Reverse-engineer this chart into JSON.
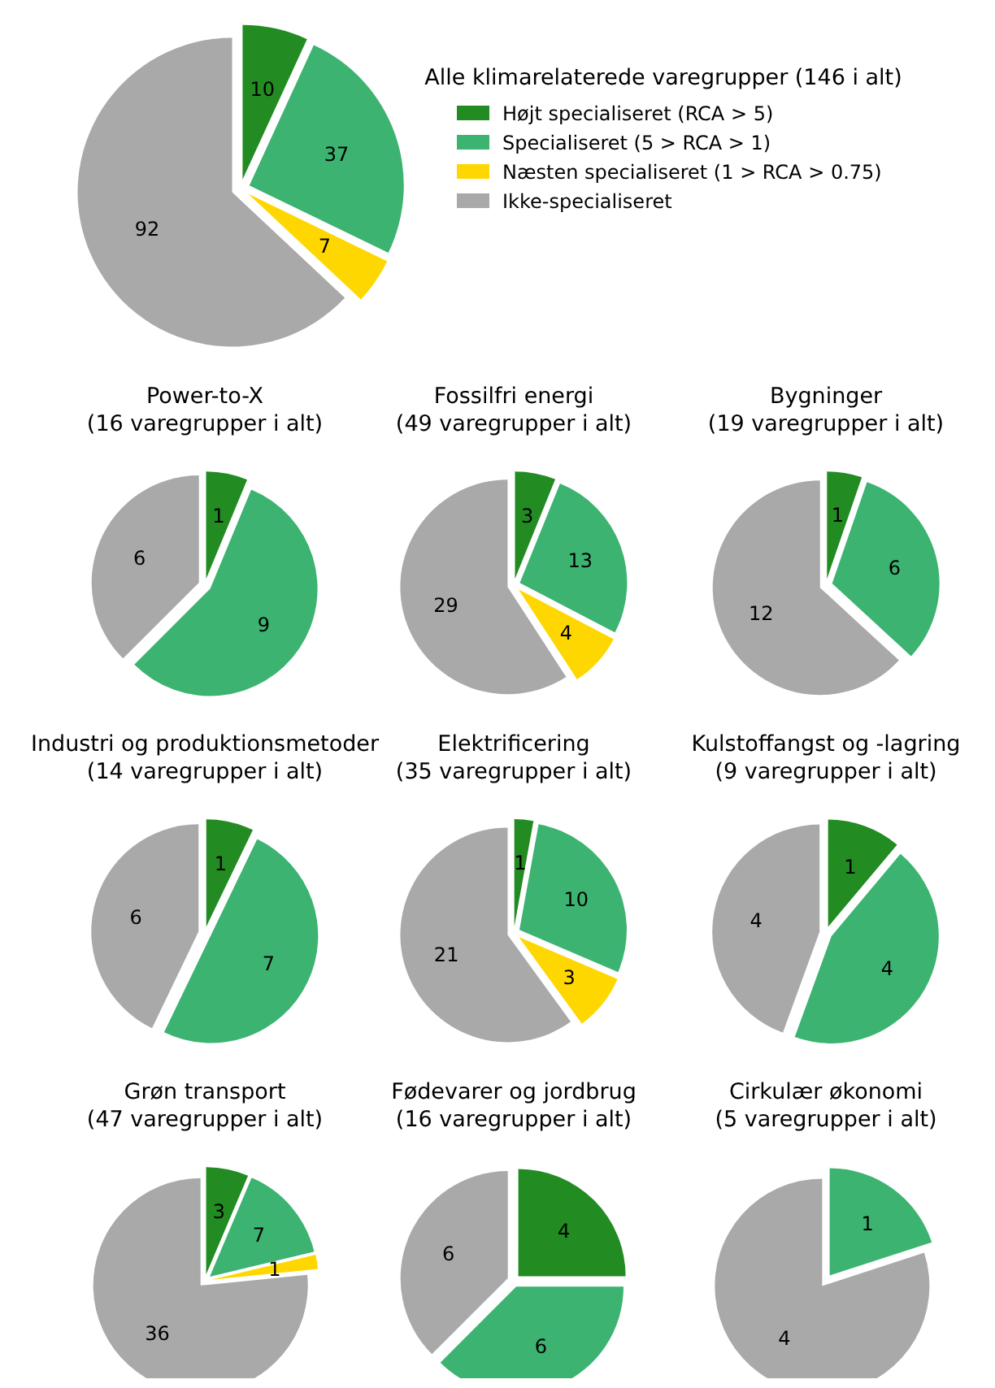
{
  "chart_data": [
    {
      "type": "pie",
      "title": "Alle klimarelaterede varegrupper (146 i alt)",
      "categories": [
        "Højt specialiseret (RCA > 5)",
        "Specialiseret (5 > RCA > 1)",
        "Næsten specialiseret (1 > RCA > 0.75)",
        "Ikke-specialiseret"
      ],
      "values": [
        10,
        37,
        7,
        92
      ],
      "colors": [
        "#228b22",
        "#3cb371",
        "#ffd700",
        "#a9a9a9"
      ],
      "data_labels": true,
      "legend": "right"
    },
    {
      "type": "pie",
      "title": "Power-to-X\n(16 varegrupper i alt)",
      "categories": [
        null,
        null,
        null,
        null
      ],
      "values": [
        1,
        9,
        0,
        6
      ],
      "colors": [
        "#228b22",
        "#3cb371",
        "#ffd700",
        "#a9a9a9"
      ],
      "data_labels": true
    },
    {
      "type": "pie",
      "title": "Fossilfri energi\n(49 varegrupper i alt)",
      "categories": [
        null,
        null,
        null,
        null
      ],
      "values": [
        3,
        13,
        4,
        29
      ],
      "colors": [
        "#228b22",
        "#3cb371",
        "#ffd700",
        "#a9a9a9"
      ],
      "data_labels": true
    },
    {
      "type": "pie",
      "title": "Bygninger\n(19 varegrupper i alt)",
      "categories": [
        null,
        null,
        null,
        null
      ],
      "values": [
        1,
        6,
        0,
        12
      ],
      "colors": [
        "#228b22",
        "#3cb371",
        "#ffd700",
        "#a9a9a9"
      ],
      "data_labels": true
    },
    {
      "type": "pie",
      "title": "Industri og produktionsmetoder\n(14 varegrupper i alt)",
      "categories": [
        null,
        null,
        null,
        null
      ],
      "values": [
        1,
        7,
        0,
        6
      ],
      "colors": [
        "#228b22",
        "#3cb371",
        "#ffd700",
        "#a9a9a9"
      ],
      "data_labels": true
    },
    {
      "type": "pie",
      "title": "Elektrificering\n(35 varegrupper i alt)",
      "categories": [
        null,
        null,
        null,
        null
      ],
      "values": [
        1,
        10,
        3,
        21
      ],
      "colors": [
        "#228b22",
        "#3cb371",
        "#ffd700",
        "#a9a9a9"
      ],
      "data_labels": true
    },
    {
      "type": "pie",
      "title": "Kulstoffangst og -lagring\n(9 varegrupper i alt)",
      "categories": [
        null,
        null,
        null,
        null
      ],
      "values": [
        1,
        4,
        0,
        4
      ],
      "colors": [
        "#228b22",
        "#3cb371",
        "#ffd700",
        "#a9a9a9"
      ],
      "data_labels": true
    },
    {
      "type": "pie",
      "title": "Grøn transport\n(47 varegrupper i alt)",
      "categories": [
        null,
        null,
        null,
        null
      ],
      "values": [
        3,
        7,
        1,
        36
      ],
      "colors": [
        "#228b22",
        "#3cb371",
        "#ffd700",
        "#a9a9a9"
      ],
      "data_labels": true
    },
    {
      "type": "pie",
      "title": "Fødevarer og jordbrug\n(16 varegrupper i alt)",
      "categories": [
        null,
        null,
        null,
        null
      ],
      "values": [
        4,
        6,
        0,
        6
      ],
      "colors": [
        "#228b22",
        "#3cb371",
        "#ffd700",
        "#a9a9a9"
      ],
      "data_labels": true
    },
    {
      "type": "pie",
      "title": "Cirkulær økonomi\n(5 varegrupper i alt)",
      "categories": [
        null,
        null,
        null,
        null
      ],
      "values": [
        0,
        1,
        0,
        4
      ],
      "colors": [
        "#228b22",
        "#3cb371",
        "#ffd700",
        "#a9a9a9"
      ],
      "data_labels": true
    }
  ]
}
